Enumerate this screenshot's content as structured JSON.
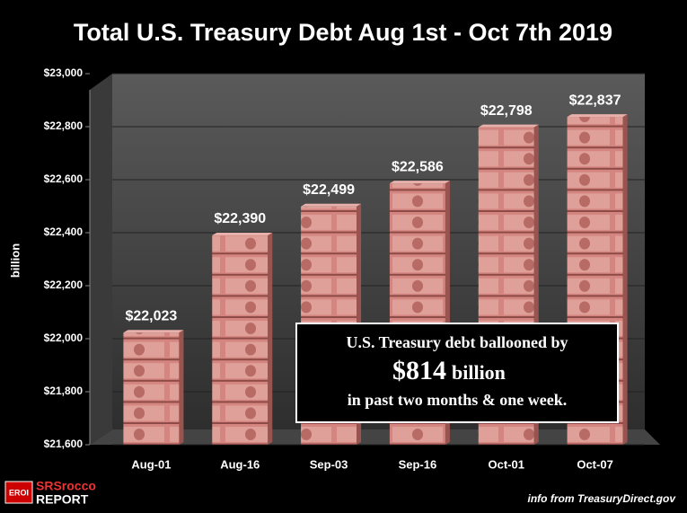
{
  "chart_data": {
    "type": "bar",
    "title": "Total U.S. Treasury Debt Aug 1st - Oct 7th 2019",
    "y_label": "billion",
    "categories": [
      "Aug-01",
      "Aug-16",
      "Sep-03",
      "Sep-16",
      "Oct-01",
      "Oct-07"
    ],
    "values": [
      22023,
      22390,
      22499,
      22586,
      22798,
      22837
    ],
    "value_labels": [
      "$22,023",
      "$22,390",
      "$22,499",
      "$22,586",
      "$22,798",
      "$22,837"
    ],
    "color": "#d4857f",
    "ylim": [
      21600,
      23000
    ],
    "yticks": [
      {
        "value": 21600,
        "label": "$21,600"
      },
      {
        "value": 21800,
        "label": "$21,800"
      },
      {
        "value": 22000,
        "label": "$22,000"
      },
      {
        "value": 22200,
        "label": "$22,200"
      },
      {
        "value": 22400,
        "label": "$22,400"
      },
      {
        "value": 22600,
        "label": "$22,600"
      },
      {
        "value": 22800,
        "label": "$22,800"
      },
      {
        "value": 23000,
        "label": "$23,000"
      }
    ],
    "grid": true,
    "annotation": {
      "line1": "U.S. Treasury debt ballooned by",
      "amount": "$814",
      "unit": "billion",
      "line3": "in past two months & one week."
    },
    "source": "info from TreasuryDirect.gov",
    "logo": {
      "badge": "EROI",
      "name": "SRSrocco",
      "sub": "REPORT"
    }
  }
}
